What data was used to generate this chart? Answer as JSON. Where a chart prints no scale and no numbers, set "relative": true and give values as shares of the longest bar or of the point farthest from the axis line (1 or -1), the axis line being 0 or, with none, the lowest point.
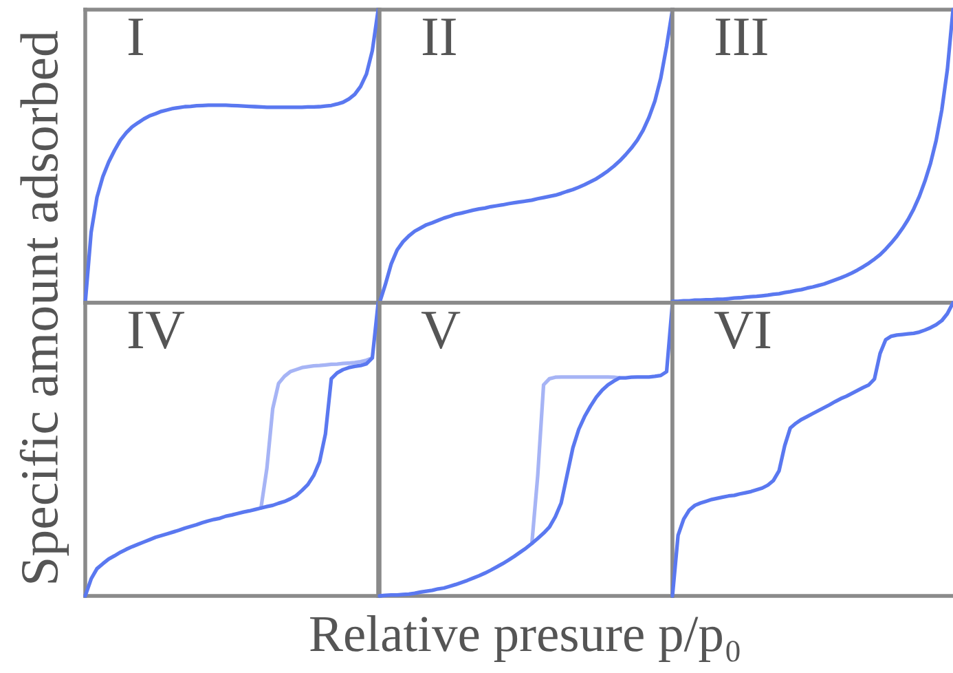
{
  "chart_data": [
    {
      "type": "line",
      "title": "I",
      "ylabel": "Specific amount adsorbed",
      "relative": true,
      "tick_labels": false,
      "categories": [
        null,
        null,
        null,
        null,
        null,
        null,
        null,
        null,
        null,
        null,
        null,
        null,
        null,
        null,
        null,
        null,
        null,
        null,
        null,
        null,
        null,
        null,
        null,
        null,
        null,
        null,
        null,
        null,
        null,
        null,
        null,
        null,
        null,
        null,
        null,
        null,
        null,
        null,
        null,
        null,
        null,
        null,
        null,
        null,
        null,
        null,
        null,
        null,
        null,
        null,
        null
      ],
      "series": [
        {
          "color": "#5a78f0",
          "values": [
            0,
            0.24,
            0.36,
            0.43,
            0.48,
            0.52,
            0.555,
            0.58,
            0.6,
            0.614,
            0.627,
            0.638,
            0.645,
            0.653,
            0.658,
            0.663,
            0.666,
            0.669,
            0.67,
            0.672,
            0.673,
            0.674,
            0.674,
            0.674,
            0.674,
            0.673,
            0.672,
            0.671,
            0.67,
            0.669,
            0.668,
            0.667,
            0.667,
            0.667,
            0.667,
            0.667,
            0.667,
            0.667,
            0.668,
            0.668,
            0.669,
            0.671,
            0.673,
            0.678,
            0.684,
            0.695,
            0.711,
            0.738,
            0.78,
            0.86,
            1
          ]
        }
      ]
    },
    {
      "type": "line",
      "title": "II",
      "relative": true,
      "tick_labels": false,
      "categories": [
        null,
        null,
        null,
        null,
        null,
        null,
        null,
        null,
        null,
        null,
        null,
        null,
        null,
        null,
        null,
        null,
        null,
        null,
        null,
        null,
        null,
        null,
        null,
        null,
        null,
        null,
        null,
        null,
        null,
        null,
        null,
        null,
        null,
        null,
        null,
        null,
        null,
        null,
        null,
        null,
        null,
        null,
        null,
        null,
        null,
        null,
        null,
        null,
        null,
        null,
        null
      ],
      "series": [
        {
          "color": "#5a78f0",
          "values": [
            0,
            0.063,
            0.133,
            0.18,
            0.208,
            0.228,
            0.244,
            0.255,
            0.266,
            0.273,
            0.281,
            0.289,
            0.295,
            0.302,
            0.306,
            0.311,
            0.316,
            0.32,
            0.323,
            0.328,
            0.331,
            0.334,
            0.338,
            0.341,
            0.344,
            0.347,
            0.35,
            0.355,
            0.359,
            0.363,
            0.367,
            0.373,
            0.38,
            0.386,
            0.394,
            0.403,
            0.413,
            0.423,
            0.436,
            0.45,
            0.466,
            0.484,
            0.505,
            0.528,
            0.555,
            0.589,
            0.633,
            0.688,
            0.766,
            0.875,
            1
          ]
        }
      ]
    },
    {
      "type": "line",
      "title": "III",
      "relative": true,
      "tick_labels": false,
      "categories": [
        null,
        null,
        null,
        null,
        null,
        null,
        null,
        null,
        null,
        null,
        null,
        null,
        null,
        null,
        null,
        null,
        null,
        null,
        null,
        null,
        null,
        null,
        null,
        null,
        null,
        null,
        null,
        null,
        null,
        null,
        null,
        null,
        null,
        null,
        null,
        null,
        null,
        null,
        null,
        null,
        null,
        null,
        null,
        null,
        null,
        null,
        null,
        null,
        null,
        null,
        null
      ],
      "series": [
        {
          "color": "#5a78f0",
          "values": [
            0.005,
            0.005,
            0.007,
            0.007,
            0.009,
            0.009,
            0.01,
            0.01,
            0.012,
            0.012,
            0.014,
            0.016,
            0.017,
            0.019,
            0.021,
            0.022,
            0.024,
            0.026,
            0.029,
            0.031,
            0.035,
            0.038,
            0.042,
            0.045,
            0.05,
            0.054,
            0.059,
            0.064,
            0.071,
            0.078,
            0.085,
            0.093,
            0.102,
            0.112,
            0.123,
            0.135,
            0.149,
            0.164,
            0.183,
            0.204,
            0.227,
            0.254,
            0.284,
            0.32,
            0.363,
            0.415,
            0.476,
            0.554,
            0.657,
            0.796,
            1
          ]
        }
      ]
    },
    {
      "type": "line",
      "title": "IV",
      "relative": true,
      "tick_labels": false,
      "categories": [
        null,
        null,
        null,
        null,
        null,
        null,
        null,
        null,
        null,
        null,
        null,
        null,
        null,
        null,
        null,
        null,
        null,
        null,
        null,
        null,
        null,
        null,
        null,
        null,
        null,
        null,
        null,
        null,
        null,
        null,
        null,
        null,
        null,
        null,
        null,
        null,
        null,
        null,
        null,
        null,
        null,
        null,
        null,
        null,
        null,
        null,
        null,
        null,
        null,
        null,
        null
      ],
      "series": [
        {
          "color": "#a6b4f5",
          "values": [
            null,
            null,
            null,
            null,
            null,
            null,
            null,
            null,
            null,
            null,
            null,
            null,
            null,
            null,
            null,
            null,
            null,
            null,
            null,
            null,
            null,
            null,
            null,
            null,
            null,
            null,
            null,
            null,
            null,
            null,
            0.3,
            0.435,
            0.639,
            0.725,
            0.749,
            0.765,
            0.772,
            0.779,
            0.782,
            0.785,
            0.786,
            0.788,
            0.79,
            0.791,
            0.793,
            0.794,
            0.796,
            0.799,
            0.804,
            0.812,
            null
          ]
        },
        {
          "color": "#5a78f0",
          "values": [
            0,
            0.058,
            0.093,
            0.11,
            0.126,
            0.137,
            0.149,
            0.159,
            0.168,
            0.176,
            0.184,
            0.192,
            0.2,
            0.206,
            0.212,
            0.218,
            0.224,
            0.231,
            0.237,
            0.243,
            0.25,
            0.256,
            0.261,
            0.265,
            0.272,
            0.276,
            0.281,
            0.286,
            0.29,
            0.295,
            0.3,
            0.305,
            0.309,
            0.316,
            0.322,
            0.331,
            0.342,
            0.36,
            0.38,
            0.411,
            0.458,
            0.553,
            0.741,
            0.761,
            0.772,
            0.779,
            0.783,
            0.786,
            0.792,
            0.812,
            1
          ]
        }
      ]
    },
    {
      "type": "line",
      "title": "V",
      "xlabel": "Relative presure p/p₀",
      "relative": true,
      "tick_labels": false,
      "categories": [
        null,
        null,
        null,
        null,
        null,
        null,
        null,
        null,
        null,
        null,
        null,
        null,
        null,
        null,
        null,
        null,
        null,
        null,
        null,
        null,
        null,
        null,
        null,
        null,
        null,
        null,
        null,
        null,
        null,
        null,
        null,
        null,
        null,
        null,
        null,
        null,
        null,
        null,
        null,
        null,
        null,
        null,
        null,
        null,
        null,
        null,
        null,
        null,
        null,
        null,
        null
      ],
      "series": [
        {
          "color": "#a6b4f5",
          "values": [
            null,
            null,
            null,
            null,
            null,
            null,
            null,
            null,
            null,
            null,
            null,
            null,
            null,
            null,
            null,
            null,
            null,
            null,
            null,
            null,
            null,
            null,
            null,
            null,
            null,
            null,
            0.179,
            0.41,
            0.72,
            0.741,
            0.746,
            0.747,
            0.747,
            0.747,
            0.747,
            0.747,
            0.747,
            0.747,
            0.747,
            0.747,
            0.746,
            0.744,
            null,
            null,
            null,
            null,
            null,
            null,
            null,
            null,
            null
          ]
        },
        {
          "color": "#5a78f0",
          "values": [
            0,
            0.002,
            0.003,
            0.003,
            0.005,
            0.006,
            0.009,
            0.013,
            0.016,
            0.019,
            0.024,
            0.027,
            0.033,
            0.039,
            0.046,
            0.053,
            0.061,
            0.069,
            0.078,
            0.088,
            0.099,
            0.11,
            0.122,
            0.135,
            0.149,
            0.163,
            0.179,
            0.196,
            0.214,
            0.235,
            0.27,
            0.317,
            0.411,
            0.505,
            0.568,
            0.612,
            0.647,
            0.678,
            0.702,
            0.72,
            0.733,
            0.744,
            0.744,
            0.746,
            0.747,
            0.747,
            0.747,
            0.749,
            0.752,
            0.765,
            1
          ]
        }
      ]
    },
    {
      "type": "line",
      "title": "VI",
      "relative": true,
      "tick_labels": false,
      "categories": [
        null,
        null,
        null,
        null,
        null,
        null,
        null,
        null,
        null,
        null,
        null,
        null,
        null,
        null,
        null,
        null,
        null,
        null,
        null,
        null,
        null,
        null,
        null,
        null,
        null,
        null,
        null,
        null,
        null,
        null,
        null,
        null,
        null,
        null,
        null,
        null,
        null,
        null,
        null,
        null,
        null,
        null,
        null,
        null,
        null,
        null,
        null,
        null,
        null,
        null,
        null
      ],
      "series": [
        {
          "color": "#5a78f0",
          "values": [
            0,
            0.207,
            0.262,
            0.293,
            0.309,
            0.317,
            0.323,
            0.329,
            0.333,
            0.337,
            0.341,
            0.343,
            0.348,
            0.352,
            0.356,
            0.362,
            0.368,
            0.378,
            0.394,
            0.427,
            0.512,
            0.573,
            0.589,
            0.602,
            0.612,
            0.622,
            0.632,
            0.642,
            0.652,
            0.663,
            0.673,
            0.681,
            0.691,
            0.701,
            0.711,
            0.72,
            0.74,
            0.827,
            0.874,
            0.886,
            0.89,
            0.892,
            0.894,
            0.896,
            0.9,
            0.907,
            0.915,
            0.925,
            0.939,
            0.963,
            1
          ]
        }
      ]
    }
  ]
}
